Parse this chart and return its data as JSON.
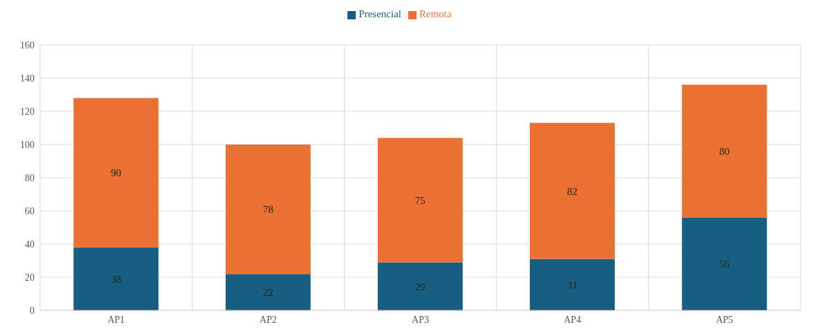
{
  "chart_data": {
    "type": "bar",
    "categories": [
      "AP1",
      "AP2",
      "AP3",
      "AP4",
      "AP5"
    ],
    "series": [
      {
        "name": "Presencial",
        "color": "#175e81",
        "values": [
          38,
          22,
          29,
          31,
          56
        ]
      },
      {
        "name": "Remota",
        "color": "#e97132",
        "values": [
          90,
          78,
          75,
          82,
          80
        ]
      }
    ],
    "stacked": true,
    "data_labels": true,
    "ylim": [
      0,
      160
    ],
    "yticks": [
      0,
      20,
      40,
      60,
      80,
      100,
      120,
      140,
      160
    ],
    "grid": true,
    "legend": "top"
  }
}
